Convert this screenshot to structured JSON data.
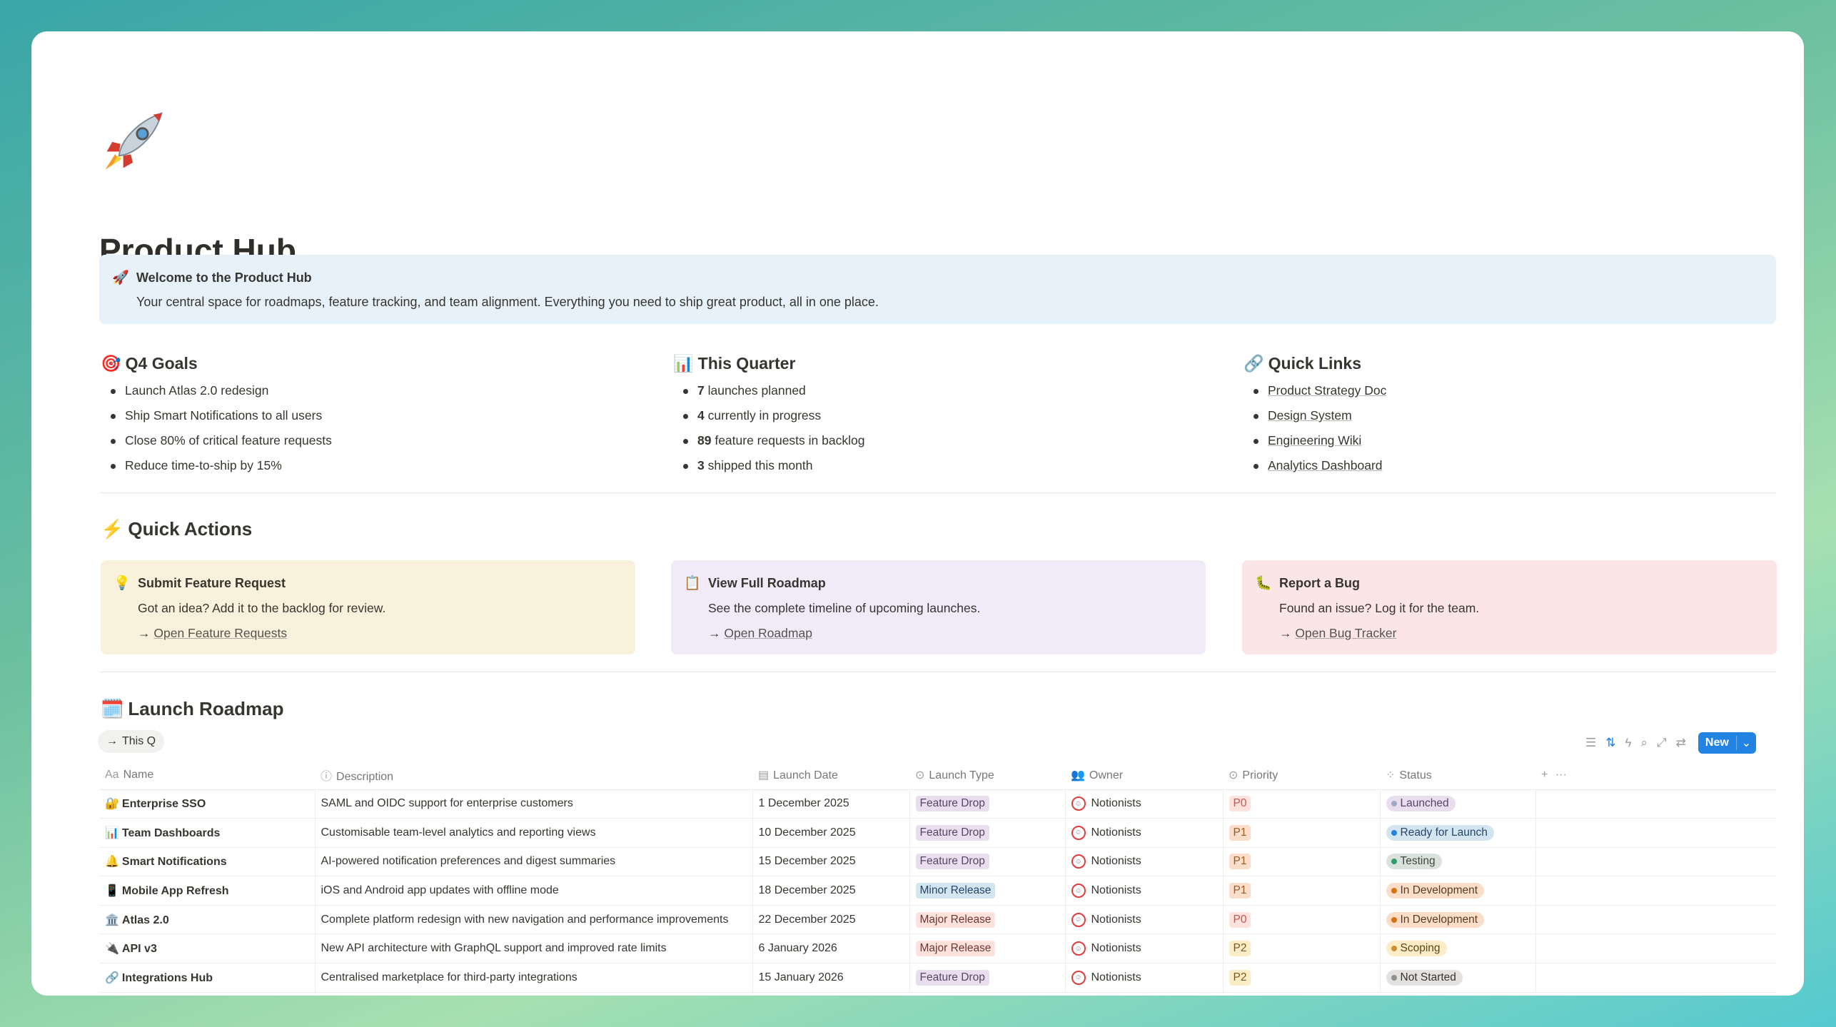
{
  "page": {
    "icon": "rocket-icon",
    "title": "Product Hub"
  },
  "callout": {
    "icon": "🚀",
    "heading": "Welcome to the Product Hub",
    "text": "Your central space for roadmaps, feature tracking, and team alignment. Everything you need to ship great product, all in one place."
  },
  "goals": {
    "icon": "🎯",
    "heading": "Q4 Goals",
    "items": [
      "Launch Atlas 2.0 redesign",
      "Ship Smart Notifications to all users",
      "Close 80% of critical feature requests",
      "Reduce time-to-ship by 15%"
    ]
  },
  "quarter": {
    "icon": "📊",
    "heading": "This Quarter",
    "items": [
      {
        "num": "7",
        "text": " launches planned"
      },
      {
        "num": "4",
        "text": " currently in progress"
      },
      {
        "num": "89",
        "text": " feature requests in backlog"
      },
      {
        "num": "3",
        "text": " shipped this month"
      }
    ]
  },
  "links": {
    "icon": "🔗",
    "heading": "Quick Links",
    "items": [
      "Product Strategy Doc",
      "Design System",
      "Engineering Wiki",
      "Analytics Dashboard"
    ]
  },
  "quick_actions": {
    "icon": "⚡",
    "heading": "Quick Actions",
    "arrow": "→",
    "cards": [
      {
        "icon": "💡",
        "title": "Submit Feature Request",
        "desc": "Got an idea? Add it to the backlog for review.",
        "link": "Open Feature Requests",
        "color": "#f9f1dc"
      },
      {
        "icon": "📋",
        "title": "View Full Roadmap",
        "desc": "See the complete timeline of upcoming launches.",
        "link": "Open Roadmap",
        "color": "#f1eaf8"
      },
      {
        "icon": "🐛",
        "title": "Report a Bug",
        "desc": "Found an issue? Log it for the team.",
        "link": "Open Bug Tracker",
        "color": "#fbe6e5"
      }
    ]
  },
  "roadmap": {
    "icon": "🗓️",
    "heading": "Launch Roadmap",
    "view": {
      "icon": "→",
      "label": "This Q"
    },
    "toolbar": {
      "new_label": "New",
      "accent": "#2383e2"
    },
    "columns": [
      "Name",
      "Description",
      "Launch Date",
      "Launch Type",
      "Owner",
      "Priority",
      "Status"
    ],
    "rows": [
      {
        "icon": "🔐",
        "name": "Enterprise SSO",
        "desc": "SAML and OIDC support for enterprise customers",
        "date": "1 December 2025",
        "type": "Feature Drop",
        "owner": "Notionists",
        "priority": "P0",
        "status": "Launched"
      },
      {
        "icon": "📊",
        "name": "Team Dashboards",
        "desc": "Customisable team-level analytics and reporting views",
        "date": "10 December 2025",
        "type": "Feature Drop",
        "owner": "Notionists",
        "priority": "P1",
        "status": "Ready for Launch"
      },
      {
        "icon": "🔔",
        "name": "Smart Notifications",
        "desc": "AI-powered notification preferences and digest summaries",
        "date": "15 December 2025",
        "type": "Feature Drop",
        "owner": "Notionists",
        "priority": "P1",
        "status": "Testing"
      },
      {
        "icon": "📱",
        "name": "Mobile App Refresh",
        "desc": "iOS and Android app updates with offline mode",
        "date": "18 December 2025",
        "type": "Minor Release",
        "owner": "Notionists",
        "priority": "P1",
        "status": "In Development"
      },
      {
        "icon": "🏛️",
        "name": "Atlas 2.0",
        "desc": "Complete platform redesign with new navigation and performance improvements",
        "date": "22 December 2025",
        "type": "Major Release",
        "owner": "Notionists",
        "priority": "P0",
        "status": "In Development"
      },
      {
        "icon": "🔌",
        "name": "API v3",
        "desc": "New API architecture with GraphQL support and improved rate limits",
        "date": "6 January 2026",
        "type": "Major Release",
        "owner": "Notionists",
        "priority": "P2",
        "status": "Scoping"
      },
      {
        "icon": "🔗",
        "name": "Integrations Hub",
        "desc": "Centralised marketplace for third-party integrations",
        "date": "15 January 2026",
        "type": "Feature Drop",
        "owner": "Notionists",
        "priority": "P2",
        "status": "Not Started"
      }
    ],
    "type_colors": {
      "Feature Drop": [
        "#e8deee",
        "#5a4566"
      ],
      "Minor Release": [
        "#d3e5ef",
        "#28456c"
      ],
      "Major Release": [
        "#ffe2dd",
        "#6e3630"
      ]
    },
    "priority_colors": {
      "P0": [
        "#ffe2dd",
        "#c4554d"
      ],
      "P1": [
        "#fadec9",
        "#9c5b2a"
      ],
      "P2": [
        "#fdecc8",
        "#7a5a1b"
      ]
    },
    "status_colors": {
      "Launched": [
        "#e8deee",
        "#9fa8c8",
        "#5a4566"
      ],
      "Ready for Launch": [
        "#d3e5ef",
        "#2383e2",
        "#28456c"
      ],
      "Testing": [
        "#dbe2dd",
        "#2f9e6a",
        "#3b4a41"
      ],
      "In Development": [
        "#fadec9",
        "#d9730d",
        "#5c3b23"
      ],
      "Scoping": [
        "#fdecc8",
        "#cb912f",
        "#5c4512"
      ],
      "Not Started": [
        "#e3e2e0",
        "#91918e",
        "#37352f"
      ]
    }
  }
}
